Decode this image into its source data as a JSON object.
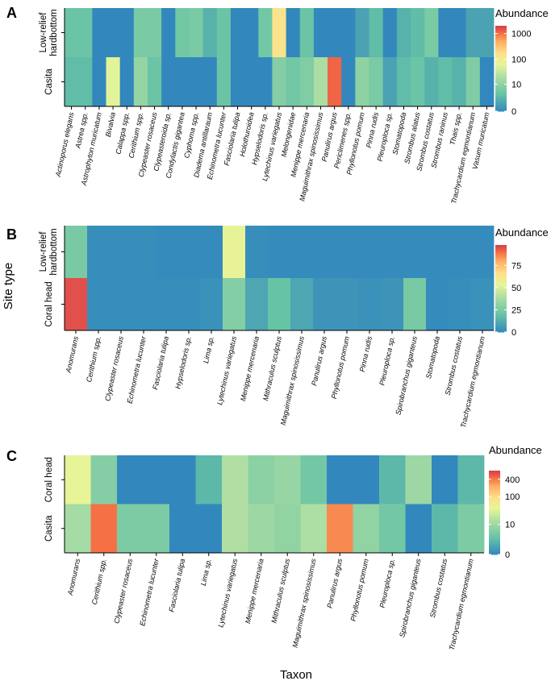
{
  "figure": {
    "ylabel": "Site type",
    "xlabel": "Taxon"
  },
  "chart_data": [
    {
      "type": "heatmap",
      "panel": "A",
      "rows": [
        "Low-relief hardbottom",
        "Casita"
      ],
      "columns": [
        "Actinoporus elegans",
        "Astrea spp.",
        "Astrophyton muricatum",
        "Bivalvia",
        "Calappa spp.",
        "Cerithium spp.",
        "Clypeaster rosaceus",
        "Clypeasteroida sp.",
        "Condylactis gigantea",
        "Cyphoma spp.",
        "Diadema antillaraum",
        "Echinometra lucunter",
        "Fasciolaria tulipa",
        "Holothuroidea",
        "Hypselodoris sp.",
        "Lytechinus variegatus",
        "Melongenidae",
        "Menippe mercenaria",
        "Maguimithrax spinosissimus",
        "Panulirus argus",
        "Periclimenes spp.",
        "Phyllonotus pomum",
        "Pinna rudis",
        "Pleuroploca sp.",
        "Stomatopoda",
        "Strombus alatus",
        "Strombus costatus",
        "Strombus raninus",
        "Thais spp.",
        "Trachycardium egmontianum",
        "Vasum muricatum"
      ],
      "values": [
        [
          4,
          4,
          0,
          0,
          0,
          6,
          6,
          0,
          5,
          6,
          2,
          4,
          0,
          0,
          5,
          150,
          0,
          4,
          0,
          0,
          0,
          1,
          3,
          0,
          2,
          3,
          6,
          0,
          0,
          1,
          1
        ],
        [
          3,
          3,
          0,
          60,
          0,
          12,
          4,
          0,
          0,
          0,
          0,
          4,
          0,
          0,
          0,
          8,
          5,
          7,
          20,
          1200,
          0,
          10,
          6,
          1,
          3,
          4,
          2,
          3,
          2,
          7,
          0
        ]
      ],
      "scale": "log",
      "legend_title": "Abundance",
      "legend_ticks": [
        {
          "label": "1000",
          "value": 1000
        },
        {
          "label": "100",
          "value": 100
        },
        {
          "label": "10",
          "value": 10
        },
        {
          "label": "0",
          "value": 0
        }
      ],
      "max_value": 2000
    },
    {
      "type": "heatmap",
      "panel": "B",
      "rows": [
        "Low-relief hardbottom",
        "Coral head"
      ],
      "columns": [
        "Anomurans",
        "Cerithium spp.",
        "Clypeaster rosaceus",
        "Echinometra lucunter",
        "Fasciolaria tulipa",
        "Hypselodoris sp.",
        "Lima sp.",
        "Lytechinus variegatus",
        "Menippe mercenaria",
        "Mithraculus sculptus",
        "Maguimithrax spinosissimus",
        "Panulirus argus",
        "Phyllonotus pomum",
        "Pinna rudis",
        "Pleuroploca sp.",
        "Spirobranchus giganteus",
        "Stomatopoda",
        "Strombus costatus",
        "Trachycardium egmontianum"
      ],
      "values": [
        [
          25,
          2,
          2,
          2,
          1,
          1,
          1,
          55,
          2,
          1,
          1,
          1,
          1,
          1,
          1,
          1,
          1,
          1,
          1
        ],
        [
          95,
          2,
          2,
          2,
          2,
          2,
          3,
          28,
          10,
          20,
          10,
          4,
          4,
          3,
          4,
          25,
          1,
          2,
          3
        ]
      ],
      "scale": "linear",
      "legend_title": "Abundance",
      "legend_ticks": [
        {
          "label": "75",
          "value": 75
        },
        {
          "label": "50",
          "value": 50
        },
        {
          "label": "25",
          "value": 25
        },
        {
          "label": "0",
          "value": 0
        }
      ],
      "max_value": 98
    },
    {
      "type": "heatmap",
      "panel": "C",
      "rows": [
        "Coral head",
        "Casita"
      ],
      "columns": [
        "Anomurans",
        "Cerithium spp.",
        "Clypeaster rosaceus",
        "Echinometra lucunter",
        "Fasciolaria tulipa",
        "Lima sp.",
        "Lytechinus variegatus",
        "Menippe mercenaria",
        "Mithraculus sculptus",
        "Maguimithrax spinosissimus",
        "Panulirus argus",
        "Phyllonotus pomum",
        "Pleuroploca sp.",
        "Spirobranchus giganteus",
        "Strombus costatus",
        "Trachycardium egmontianum"
      ],
      "values": [
        [
          40,
          6,
          0,
          0,
          0,
          2,
          15,
          7,
          9,
          4,
          0,
          0,
          2,
          10,
          0,
          2
        ],
        [
          12,
          450,
          5,
          5,
          0,
          0,
          15,
          10,
          8,
          14,
          350,
          8,
          4,
          0,
          2,
          5
        ]
      ],
      "scale": "log",
      "legend_title": "Abundance",
      "legend_ticks": [
        {
          "label": "400",
          "value": 400
        },
        {
          "label": "100",
          "value": 100
        },
        {
          "label": "10",
          "value": 10
        },
        {
          "label": "0",
          "value": 0
        }
      ],
      "max_value": 800
    }
  ]
}
